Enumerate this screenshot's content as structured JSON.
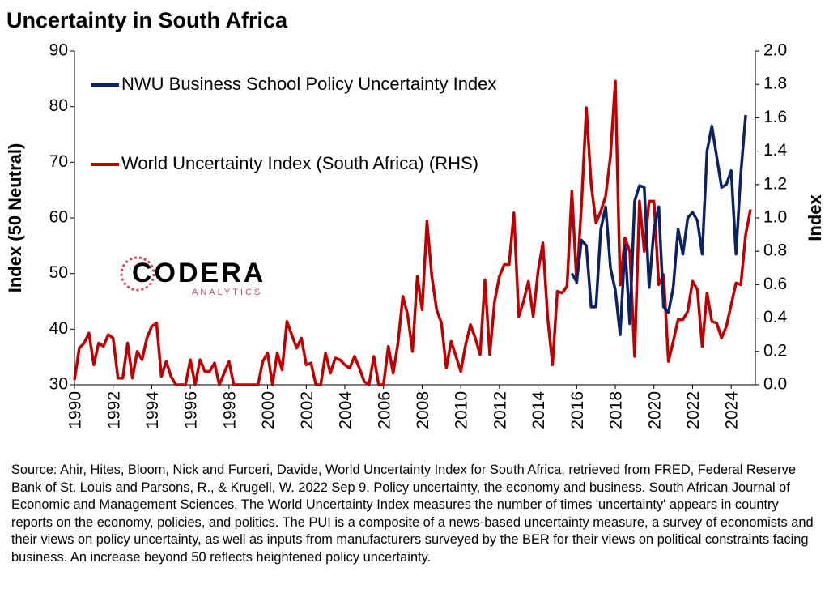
{
  "chart_data": {
    "type": "line",
    "title": "Uncertainty in South Africa",
    "ylabel": "Index (50 Neutral)",
    "y2label": "Index",
    "logo": "CODERA",
    "logo_sub": "ANALYTICS",
    "source": "Source: Ahir, Hites, Bloom, Nick and Furceri, Davide, World Uncertainty Index for South Africa, retrieved from FRED, Federal Reserve Bank of St. Louis and Parsons, R., & Krugell, W. 2022 Sep 9. Policy uncertainty, the economy and business. South African Journal of Economic and Management Sciences. The World Uncertainty Index measures the number of times 'uncertainty' appears in country reports on the economy, policies, and politics. The PUI is a composite of a news-based uncertainty measure, a survey of economists and their views on policy uncertainty, as well as inputs from manufacturers surveyed by the BER for their views on political constraints facing business. An increase beyond 50 reflects heightened policy uncertainty.",
    "xlim": [
      1990,
      2025.25
    ],
    "xticks": [
      1990,
      1992,
      1994,
      1996,
      1998,
      2000,
      2002,
      2004,
      2006,
      2008,
      2010,
      2012,
      2014,
      2016,
      2018,
      2020,
      2022,
      2024
    ],
    "ylim": [
      30,
      90
    ],
    "yticks": [
      30,
      40,
      50,
      60,
      70,
      80,
      90
    ],
    "y2lim": [
      0,
      2
    ],
    "y2ticks": [
      {
        "value": 0,
        "label": "0.0"
      },
      0.2,
      0.4,
      0.6,
      0.8,
      {
        "value": 1,
        "label": "1.0"
      },
      1.2,
      1.4,
      1.6,
      1.8,
      {
        "value": 2,
        "label": "2.0"
      }
    ],
    "series": [
      {
        "name": "NWU Business School Policy Uncertainty Index",
        "color": "#0b2265",
        "axis": "y",
        "x": [
          2015.75,
          2016,
          2016.25,
          2016.5,
          2016.75,
          2017,
          2017.25,
          2017.5,
          2017.75,
          2018,
          2018.25,
          2018.5,
          2018.75,
          2019,
          2019.25,
          2019.5,
          2019.75,
          2020,
          2020.25,
          2020.5,
          2020.75,
          2021,
          2021.25,
          2021.5,
          2021.75,
          2022,
          2022.25,
          2022.5,
          2022.75,
          2023,
          2023.25,
          2023.5,
          2023.75,
          2024,
          2024.25,
          2024.5,
          2024.75
        ],
        "values": [
          50,
          48.5,
          56,
          55,
          44,
          44,
          58,
          62,
          51,
          47,
          39,
          55,
          41,
          63,
          65.8,
          65.5,
          47.5,
          58,
          62,
          44,
          43,
          47.5,
          58,
          53.5,
          60,
          61,
          59.5,
          53.5,
          72,
          76.5,
          71,
          65.5,
          66,
          68.5,
          53.5,
          68,
          78.5
        ]
      },
      {
        "name": "World Uncertainty Index (South Africa) (RHS)",
        "color": "#c00000",
        "axis": "y2",
        "x": [
          1990,
          1990.25,
          1990.5,
          1990.75,
          1991,
          1991.25,
          1991.5,
          1991.75,
          1992,
          1992.25,
          1992.5,
          1992.75,
          1993,
          1993.25,
          1993.5,
          1993.75,
          1994,
          1994.25,
          1994.5,
          1994.75,
          1995,
          1995.25,
          1995.5,
          1995.75,
          1996,
          1996.25,
          1996.5,
          1996.75,
          1997,
          1997.25,
          1997.5,
          1997.75,
          1998,
          1998.25,
          1998.5,
          1998.75,
          1999,
          1999.25,
          1999.5,
          1999.75,
          2000,
          2000.25,
          2000.5,
          2000.75,
          2001,
          2001.25,
          2001.5,
          2001.75,
          2002,
          2002.25,
          2002.5,
          2002.75,
          2003,
          2003.25,
          2003.5,
          2003.75,
          2004,
          2004.25,
          2004.5,
          2004.75,
          2005,
          2005.25,
          2005.5,
          2005.75,
          2006,
          2006.25,
          2006.5,
          2006.75,
          2007,
          2007.25,
          2007.5,
          2007.75,
          2008,
          2008.25,
          2008.5,
          2008.75,
          2009,
          2009.25,
          2009.5,
          2009.75,
          2010,
          2010.25,
          2010.5,
          2010.75,
          2011,
          2011.25,
          2011.5,
          2011.75,
          2012,
          2012.25,
          2012.5,
          2012.75,
          2013,
          2013.25,
          2013.5,
          2013.75,
          2014,
          2014.25,
          2014.5,
          2014.75,
          2015,
          2015.25,
          2015.5,
          2015.75,
          2016,
          2016.25,
          2016.5,
          2016.75,
          2017,
          2017.25,
          2017.5,
          2017.75,
          2018,
          2018.25,
          2018.5,
          2018.75,
          2019,
          2019.25,
          2019.5,
          2019.75,
          2020,
          2020.25,
          2020.5,
          2020.75,
          2021,
          2021.25,
          2021.5,
          2021.75,
          2022,
          2022.25,
          2022.5,
          2022.75,
          2023,
          2023.25,
          2023.5,
          2023.75,
          2024,
          2024.25,
          2024.5,
          2024.75,
          2025
        ],
        "values": [
          0.03,
          0.22,
          0.25,
          0.31,
          0.12,
          0.25,
          0.23,
          0.3,
          0.28,
          0.04,
          0.04,
          0.25,
          0.04,
          0.2,
          0.15,
          0.28,
          0.35,
          0.37,
          0.05,
          0.14,
          0.05,
          0.0,
          0.0,
          0.0,
          0.15,
          0.0,
          0.15,
          0.08,
          0.08,
          0.13,
          0.0,
          0.07,
          0.14,
          0.0,
          0.0,
          0.0,
          0.0,
          0.0,
          0.0,
          0.14,
          0.19,
          0.0,
          0.19,
          0.09,
          0.38,
          0.3,
          0.22,
          0.28,
          0.12,
          0.13,
          0.0,
          0.0,
          0.19,
          0.07,
          0.16,
          0.15,
          0.12,
          0.1,
          0.17,
          0.1,
          0.02,
          0.0,
          0.17,
          0.0,
          0.0,
          0.23,
          0.07,
          0.25,
          0.53,
          0.42,
          0.2,
          0.65,
          0.45,
          0.98,
          0.65,
          0.45,
          0.37,
          0.1,
          0.26,
          0.17,
          0.08,
          0.24,
          0.36,
          0.28,
          0.18,
          0.63,
          0.18,
          0.5,
          0.65,
          0.72,
          0.72,
          1.03,
          0.41,
          0.5,
          0.62,
          0.41,
          0.68,
          0.85,
          0.4,
          0.12,
          0.56,
          0.55,
          0.59,
          1.16,
          0.61,
          1.08,
          1.66,
          1.2,
          0.97,
          1.04,
          1.13,
          1.37,
          1.82,
          0.6,
          0.88,
          0.8,
          0.17,
          1.1,
          0.8,
          1.1,
          1.1,
          0.6,
          0.66,
          0.14,
          0.26,
          0.39,
          0.39,
          0.44,
          0.62,
          0.57,
          0.23,
          0.55,
          0.38,
          0.37,
          0.28,
          0.35,
          0.48,
          0.61,
          0.6,
          0.9,
          1.05
        ]
      }
    ]
  }
}
